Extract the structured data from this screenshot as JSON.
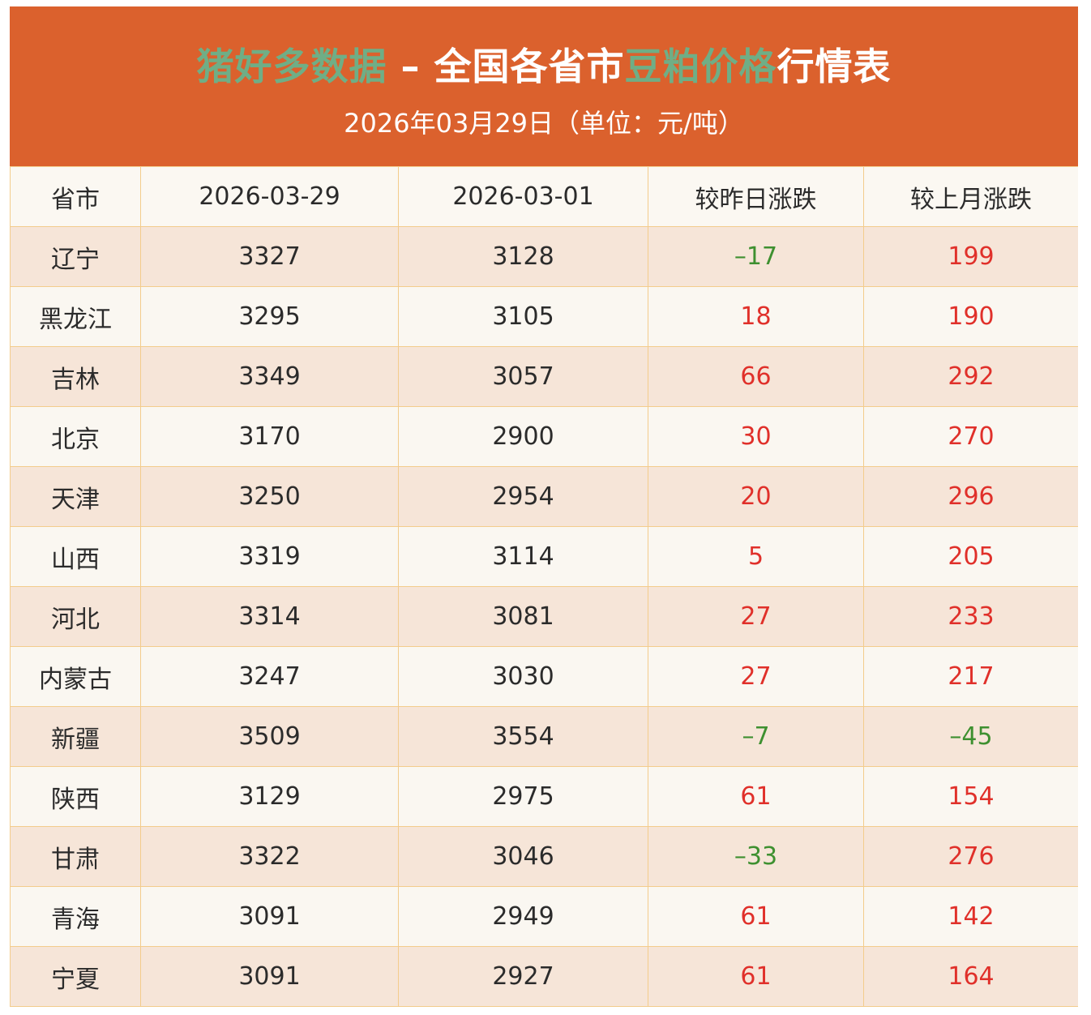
{
  "header": {
    "title_part1": "猪好多数据",
    "title_part2": " – 全国各省市",
    "title_part3": "豆粕价格",
    "title_part4": "行情表",
    "subtitle": "2026年03月29日（单位：元/吨）"
  },
  "colors": {
    "header_bg": "#db612d",
    "title_highlight": "#6fae86",
    "rise": "#e0302a",
    "fall": "#3e9030"
  },
  "table": {
    "columns": [
      "省市",
      "2026-03-29",
      "2026-03-01",
      "较昨日涨跌",
      "较上月涨跌"
    ],
    "rows": [
      {
        "province": "辽宁",
        "today": "3327",
        "prev_month": "3128",
        "day_change": "–17",
        "month_change": "199"
      },
      {
        "province": "黑龙江",
        "today": "3295",
        "prev_month": "3105",
        "day_change": "18",
        "month_change": "190"
      },
      {
        "province": "吉林",
        "today": "3349",
        "prev_month": "3057",
        "day_change": "66",
        "month_change": "292"
      },
      {
        "province": "北京",
        "today": "3170",
        "prev_month": "2900",
        "day_change": "30",
        "month_change": "270"
      },
      {
        "province": "天津",
        "today": "3250",
        "prev_month": "2954",
        "day_change": "20",
        "month_change": "296"
      },
      {
        "province": "山西",
        "today": "3319",
        "prev_month": "3114",
        "day_change": "5",
        "month_change": "205"
      },
      {
        "province": "河北",
        "today": "3314",
        "prev_month": "3081",
        "day_change": "27",
        "month_change": "233"
      },
      {
        "province": "内蒙古",
        "today": "3247",
        "prev_month": "3030",
        "day_change": "27",
        "month_change": "217"
      },
      {
        "province": "新疆",
        "today": "3509",
        "prev_month": "3554",
        "day_change": "–7",
        "month_change": "–45"
      },
      {
        "province": "陕西",
        "today": "3129",
        "prev_month": "2975",
        "day_change": "61",
        "month_change": "154"
      },
      {
        "province": "甘肃",
        "today": "3322",
        "prev_month": "3046",
        "day_change": "–33",
        "month_change": "276"
      },
      {
        "province": "青海",
        "today": "3091",
        "prev_month": "2949",
        "day_change": "61",
        "month_change": "142"
      },
      {
        "province": "宁夏",
        "today": "3091",
        "prev_month": "2927",
        "day_change": "61",
        "month_change": "164"
      }
    ]
  }
}
